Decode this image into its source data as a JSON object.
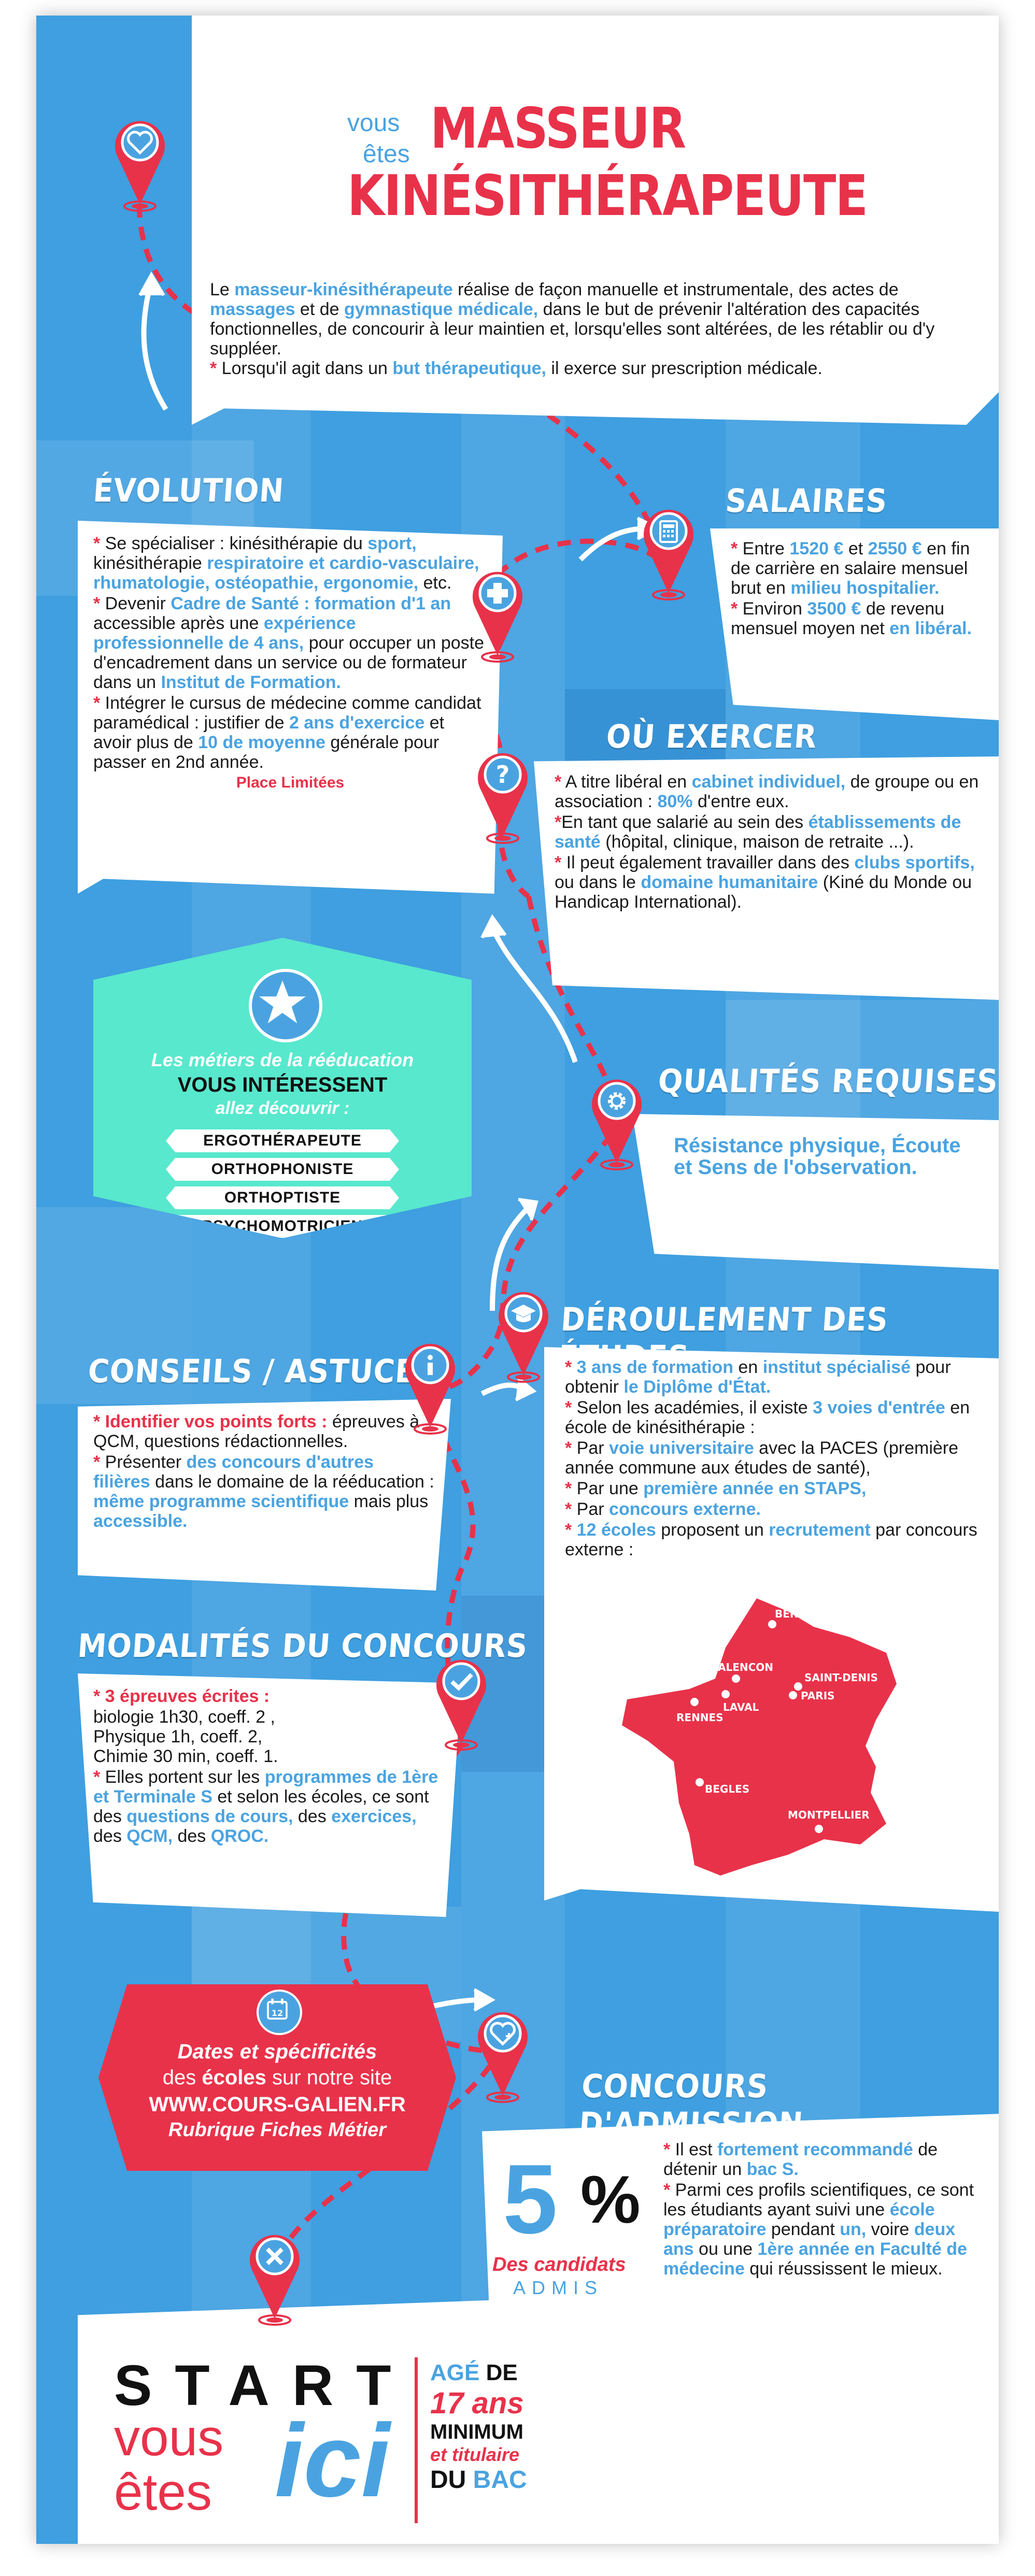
{
  "title": {
    "vous": "vous",
    "etes": "êtes",
    "line1": "MASSEUR",
    "line2": "KINÉSITHÉRAPEUTE"
  },
  "intro": {
    "t1": "Le ",
    "k1": "masseur-kinésithérapeute",
    "t2": " réalise de façon manuelle et instrumentale, des actes de ",
    "k2": "massages",
    "t3": " et de ",
    "k3": "gymnastique médicale,",
    "t4": " dans le but de prévenir l'altération des capacités fonctionnelles, de concourir à leur maintien et, lorsqu'elles sont altérées, de les rétablir ou d'y suppléer.",
    "star": "*",
    "t5": " Lorsqu'il agit dans un ",
    "k4": "but thérapeutique,",
    "t6": " il exerce sur prescription médicale."
  },
  "evolution": {
    "heading": "ÉVOLUTION",
    "a1": " Se spécialiser : kinésithérapie du ",
    "a1k": "sport,",
    "a2": " kinésithérapie ",
    "a2k": "respiratoire et cardio-vasculaire, rhumatologie, ostéopathie, ergonomie,",
    "a3": " etc.",
    "b1": " Devenir ",
    "b1k": "Cadre de Santé : formation d'1 an",
    "b2": " accessible après une ",
    "b2k": "expérience professionnelle de 4 ans,",
    "b3": " pour occuper un poste d'encadrement dans un service ou de formateur dans un ",
    "b3k": "Institut de Formation.",
    "c1": " Intégrer le cursus de médecine comme candidat paramédical : justifier de ",
    "c1k": "2 ans d'exercice",
    "c2": " et avoir plus de ",
    "c2k": "10 de moyenne",
    "c3": " générale pour passer en 2nd année.",
    "note": "Place Limitées"
  },
  "salaires": {
    "heading": "SALAIRES",
    "a1": " Entre ",
    "a1k": "1520 €",
    "a2": " et ",
    "a2k": "2550 €",
    "a3": " en fin de carrière en salaire mensuel brut en ",
    "a3k": "milieu hospitalier.",
    "b1": " Environ ",
    "b1k": "3500 €",
    "b2": " de revenu mensuel moyen net ",
    "b2k": "en libéral."
  },
  "ouexercer": {
    "heading": "OÙ EXERCER",
    "a1": " A titre libéral en ",
    "a1k": "cabinet  individuel,",
    "a2": " de groupe ou en association : ",
    "a2k": "80%",
    "a3": " d'entre eux.",
    "b1": "En tant que salarié au sein des ",
    "b1k": "établissements de santé",
    "b2": " (hôpital, clinique, maison de retraite ...).",
    "c1": " Il peut également travailler dans des ",
    "c1k": "clubs sportifs,",
    "c2": " ou dans le ",
    "c2k": "domaine humanitaire",
    "c3": " (Kiné du Monde ou Handicap International)."
  },
  "metiers": {
    "line1": "Les métiers de la rééducation",
    "line2a": "VOUS",
    "line2b": "INTÉRESSENT",
    "line3": "allez découvrir :",
    "items": [
      "ERGOTHÉRAPEUTE",
      "ORTHOPHONISTE",
      "ORTHOPTISTE",
      "PSYCHOMOTRICIEN"
    ]
  },
  "qualites": {
    "heading": "QUALITÉS REQUISES",
    "text": "Résistance physique, Écoute et Sens de l'observation."
  },
  "deroulement": {
    "heading": "DÉROULEMENT DES ÉTUDES",
    "a1": " 3 ans de formation",
    "a2": " en ",
    "a2k": "institut spécialisé",
    "a3": " pour obtenir ",
    "a3k": "le Diplôme d'État.",
    "b1": " Selon les académies, il existe ",
    "b1k": "3 voies d'entrée",
    "b2": " en école de kinésithérapie :",
    "c1": " Par ",
    "c1k": "voie universitaire",
    "c2": " avec la PACES (première année commune aux études de santé),",
    "d1": " Par une ",
    "d1k": "première année en STAPS,",
    "e1": " Par ",
    "e1k": "concours externe.",
    "f1": " 12 écoles",
    "f2": " proposent un ",
    "f2k": "recrutement",
    "f3": " par concours externe :"
  },
  "map": {
    "cities": [
      "BERCK",
      "ALENCON",
      "SAINT-DENIS",
      "PARIS",
      "LAVAL",
      "RENNES",
      "BEGLES",
      "MONTPELLIER"
    ]
  },
  "conseils": {
    "heading": "CONSEILS / ASTUCES",
    "a1": " Identifier vos points forts :",
    "a2": " épreuves à QCM, questions rédactionnelles.",
    "b1": " Présenter ",
    "b1k": "des concours d'autres filières",
    "b2": " dans le domaine de la rééducation : ",
    "b2k": "même programme scientifique",
    "b3": " mais plus ",
    "b3k": "accessible."
  },
  "modalites": {
    "heading": "MODALITÉS DU CONCOURS",
    "a1": " 3 épreuves écrites :",
    "lines": [
      "biologie 1h30, coeff. 2 ,",
      "Physique 1h, coeff. 2,",
      "Chimie 30 min, coeff. 1."
    ],
    "b1": " Elles portent sur les ",
    "b1k": "programmes de 1ère et Terminale S",
    "b2": " et selon les écoles, ce sont des ",
    "b2k": "questions de cours,",
    "b3": " des ",
    "b3k": "exercices,",
    "b4": " des ",
    "b4k": "QCM,",
    "b5": " des ",
    "b5k": "QROC."
  },
  "dates": {
    "l1": "Dates et spécificités",
    "l2a": "des ",
    "l2b": "écoles",
    "l2c": " sur notre site",
    "l3": "WWW.COURS-GALIEN.FR",
    "l4": "Rubrique Fiches Métier",
    "calendar_day": "12"
  },
  "concours": {
    "heading": "CONCOURS D'ADMISSION",
    "pct": "5",
    "pctsign": "%",
    "cand": "Des candidats",
    "admis": "ADMIS",
    "a1": " Il est ",
    "a1k": "fortement recommandé",
    "a2": " de détenir un ",
    "a2k": "bac S.",
    "b1": " Parmi ces profils scientifiques, ce sont les étudiants ayant suivi une ",
    "b1k": "école préparatoire",
    "b2": " pendant ",
    "b2k": "un,",
    "b3": " voire ",
    "b3k": "deux ans",
    "b4": " ou une ",
    "b4k": "1ère année en Faculté de médecine",
    "b5": " qui réussissent le mieux."
  },
  "start": {
    "word": "START",
    "vous": "vous",
    "etes": "êtes",
    "ici": "ici",
    "age1": "AGÉ",
    "de": "DE",
    "age2": "17 ans",
    "min": "MINIMUM",
    "tit1": "et titulaire",
    "du": "DU",
    "bac": "BAC"
  },
  "colors": {
    "red": "#e8324a",
    "blue": "#4aa3e0",
    "bg": "#3f9fe0",
    "teal": "#58e8cd"
  },
  "icons": [
    "heart-icon",
    "calculator-icon",
    "plus-icon",
    "question-icon",
    "star-icon",
    "gear-icon",
    "graduation-cap-icon",
    "info-icon",
    "check-icon",
    "calendar-icon",
    "heart-plus-icon",
    "close-icon"
  ]
}
